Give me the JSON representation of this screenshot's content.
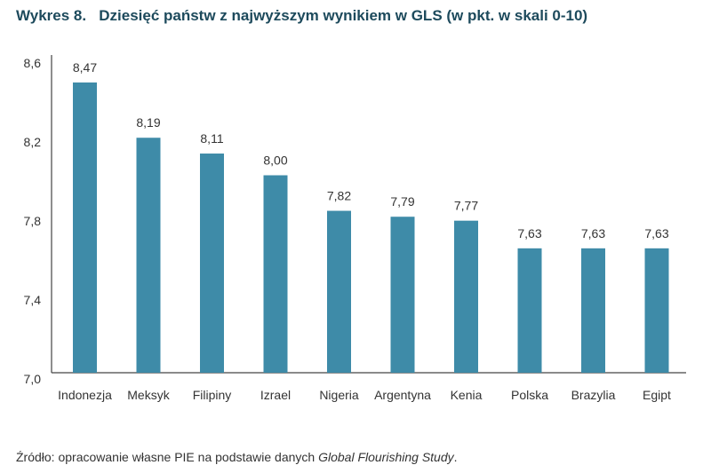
{
  "title": "Wykres 8.   Dziesięć państw z najwyższym wynikiem w GLS (w pkt. w skali 0-10)",
  "source_prefix": "Źródło: opracowanie własne PIE na podstawie danych ",
  "source_italic": "Global Flourishing Study",
  "source_suffix": ".",
  "chart_data": {
    "type": "bar",
    "title": "Dziesięć państw z najwyższym wynikiem w GLS (w pkt. w skali 0-10)",
    "categories": [
      "Indonezja",
      "Meksyk",
      "Filipiny",
      "Izrael",
      "Nigeria",
      "Argentyna",
      "Kenia",
      "Polska",
      "Brazylia",
      "Egipt"
    ],
    "values": [
      8.47,
      8.19,
      8.11,
      8.0,
      7.82,
      7.79,
      7.77,
      7.63,
      7.63,
      7.63
    ],
    "value_labels": [
      "8,47",
      "8,19",
      "8,11",
      "8,00",
      "7,82",
      "7,79",
      "7,77",
      "7,63",
      "7,63",
      "7,63"
    ],
    "yticks": [
      "7,0",
      "7,4",
      "7,8",
      "8,2",
      "8,6"
    ],
    "ylim": [
      7.0,
      8.6
    ],
    "grid": false,
    "bar_color": "#3e8ba8",
    "xlabel": "",
    "ylabel": ""
  }
}
